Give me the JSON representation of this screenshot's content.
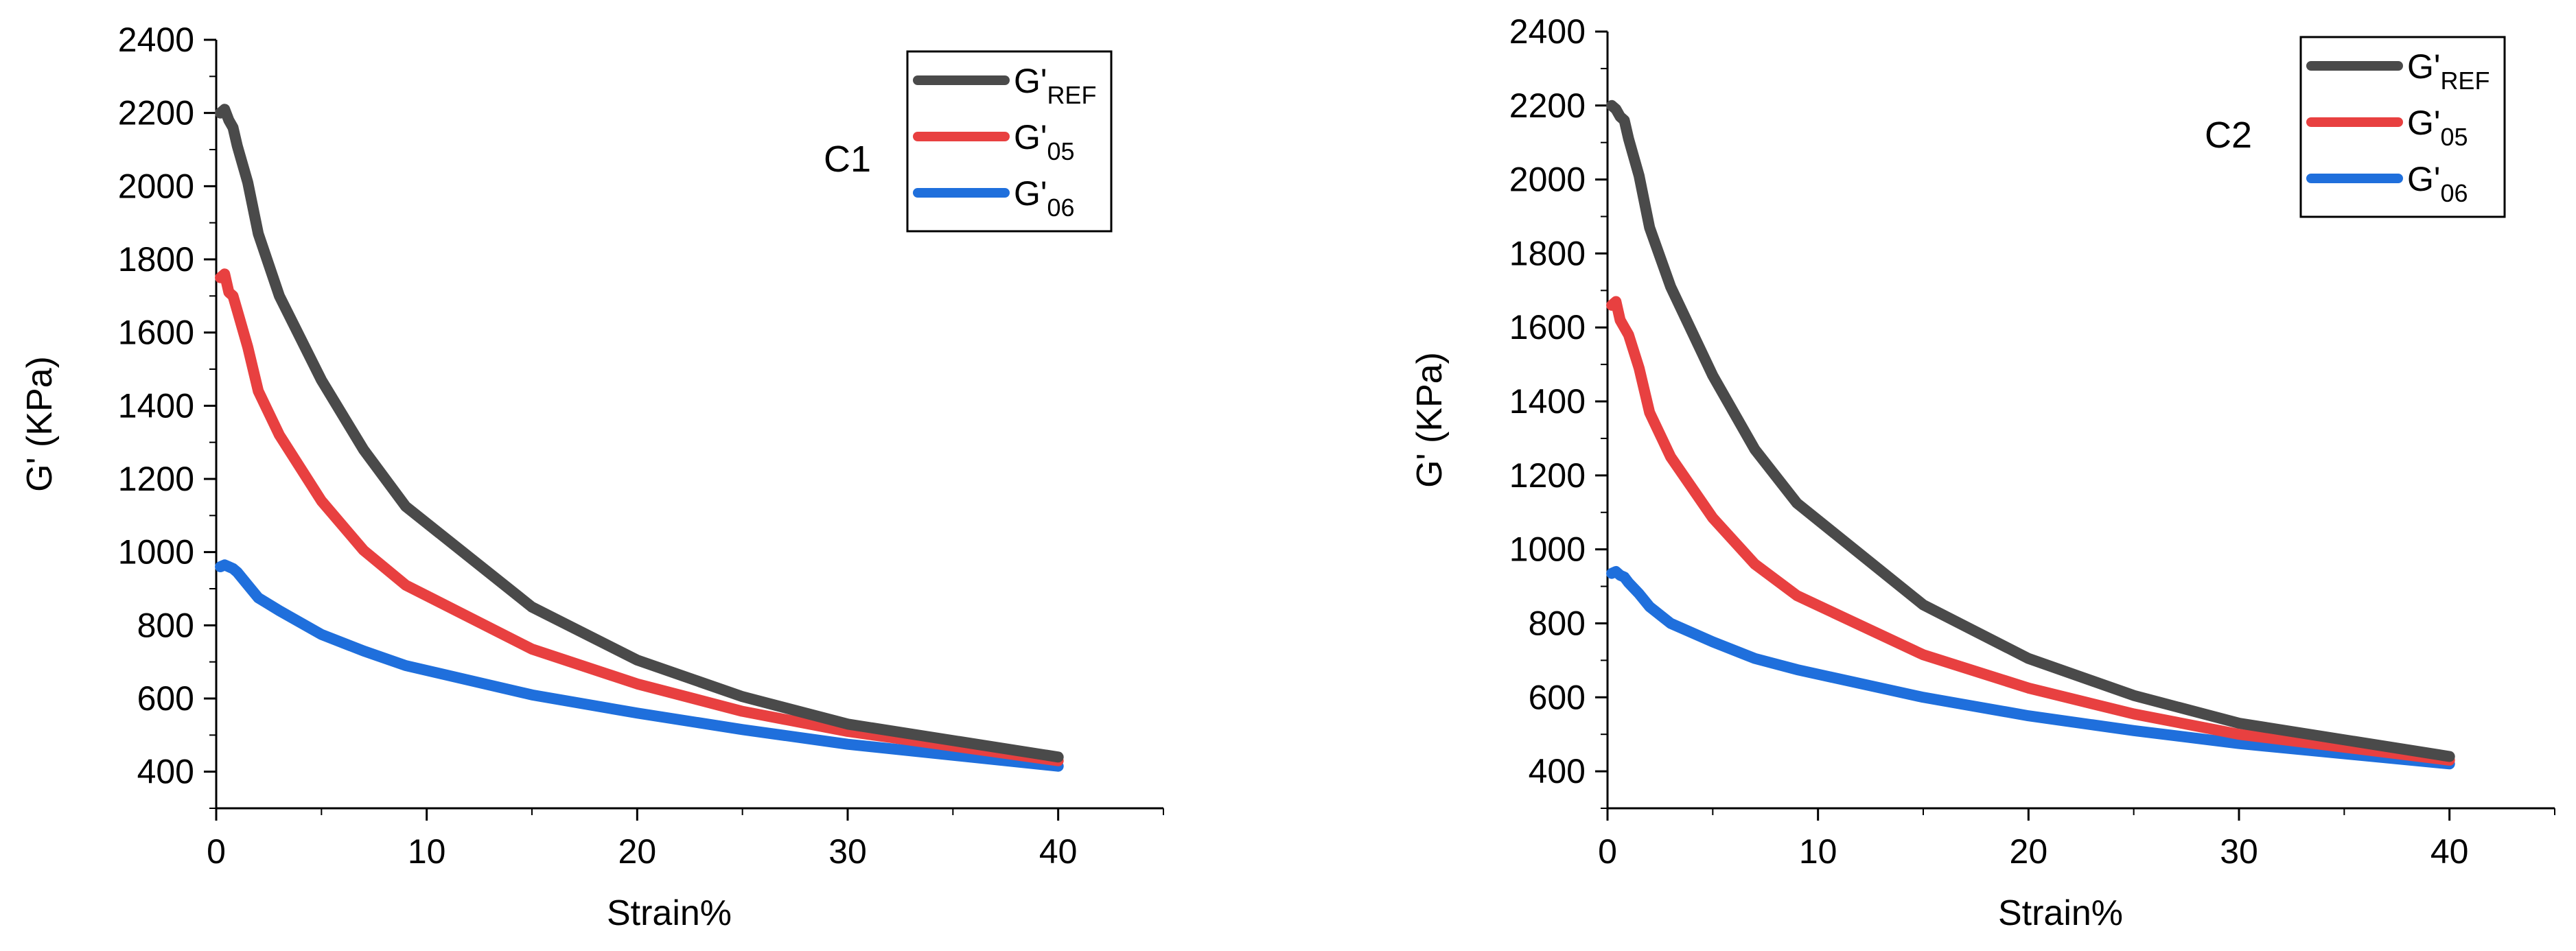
{
  "chart_data": [
    {
      "type": "line",
      "xlabel": "Strain%",
      "ylabel": "G' (KPa)",
      "annotation": "C1",
      "xlim": [
        0,
        45
      ],
      "ylim": [
        300,
        2400
      ],
      "x_ticks": [
        0,
        10,
        20,
        30,
        40
      ],
      "y_ticks": [
        400,
        600,
        800,
        1000,
        1200,
        1400,
        1600,
        1800,
        2000,
        2200,
        2400
      ],
      "x_tick_labels": [
        "0",
        "10",
        "20",
        "30",
        "40"
      ],
      "y_tick_labels": [
        "400",
        "600",
        "800",
        "1000",
        "1200",
        "1400",
        "1600",
        "1800",
        "2000",
        "2200",
        "2400"
      ],
      "legend_position": "top-right",
      "series": [
        {
          "name": "G'REF",
          "base": "G'",
          "sub": "REF",
          "color": "#4a4a4a",
          "x": [
            0.2,
            0.4,
            0.6,
            0.8,
            1,
            1.5,
            2,
            3,
            5,
            7,
            9,
            15,
            20,
            25,
            30,
            40
          ],
          "y": [
            2200,
            2210,
            2180,
            2160,
            2110,
            2010,
            1870,
            1700,
            1470,
            1280,
            1125,
            850,
            705,
            605,
            530,
            440
          ]
        },
        {
          "name": "G'05",
          "base": "G'",
          "sub": "05",
          "color": "#e84040",
          "x": [
            0.2,
            0.4,
            0.6,
            0.8,
            1,
            1.5,
            2,
            3,
            5,
            7,
            9,
            15,
            20,
            25,
            30,
            40
          ],
          "y": [
            1750,
            1760,
            1710,
            1700,
            1660,
            1560,
            1440,
            1320,
            1140,
            1005,
            910,
            735,
            640,
            565,
            510,
            430
          ]
        },
        {
          "name": "G'06",
          "base": "G'",
          "sub": "06",
          "color": "#1f6fdc",
          "x": [
            0.2,
            0.4,
            0.6,
            0.8,
            1,
            1.5,
            2,
            3,
            5,
            7,
            9,
            15,
            20,
            25,
            30,
            40
          ],
          "y": [
            960,
            965,
            960,
            955,
            945,
            910,
            875,
            840,
            775,
            730,
            690,
            610,
            560,
            515,
            475,
            415
          ]
        }
      ]
    },
    {
      "type": "line",
      "xlabel": "Strain%",
      "ylabel": "G' (KPa)",
      "annotation": "C2",
      "xlim": [
        0,
        45
      ],
      "ylim": [
        300,
        2400
      ],
      "x_ticks": [
        0,
        10,
        20,
        30,
        40
      ],
      "y_ticks": [
        400,
        600,
        800,
        1000,
        1200,
        1400,
        1600,
        1800,
        2000,
        2200,
        2400
      ],
      "x_tick_labels": [
        "0",
        "10",
        "20",
        "30",
        "40"
      ],
      "y_tick_labels": [
        "400",
        "600",
        "800",
        "1000",
        "1200",
        "1400",
        "1600",
        "1800",
        "2000",
        "2200",
        "2400"
      ],
      "legend_position": "top-right",
      "series": [
        {
          "name": "G'REF",
          "base": "G'",
          "sub": "REF",
          "color": "#4a4a4a",
          "x": [
            0.2,
            0.4,
            0.6,
            0.8,
            1,
            1.5,
            2,
            3,
            5,
            7,
            9,
            15,
            20,
            25,
            30,
            40
          ],
          "y": [
            2200,
            2190,
            2170,
            2160,
            2110,
            2010,
            1870,
            1710,
            1470,
            1270,
            1125,
            850,
            705,
            605,
            530,
            440
          ]
        },
        {
          "name": "G'05",
          "base": "G'",
          "sub": "05",
          "color": "#e84040",
          "x": [
            0.2,
            0.4,
            0.6,
            0.8,
            1,
            1.5,
            2,
            3,
            5,
            7,
            9,
            15,
            20,
            25,
            30,
            40
          ],
          "y": [
            1660,
            1670,
            1620,
            1600,
            1580,
            1490,
            1370,
            1250,
            1085,
            960,
            875,
            715,
            625,
            555,
            500,
            430
          ]
        },
        {
          "name": "G'06",
          "base": "G'",
          "sub": "06",
          "color": "#1f6fdc",
          "x": [
            0.2,
            0.4,
            0.6,
            0.8,
            1,
            1.5,
            2,
            3,
            5,
            7,
            9,
            15,
            20,
            25,
            30,
            40
          ],
          "y": [
            935,
            940,
            930,
            925,
            910,
            880,
            845,
            800,
            750,
            705,
            675,
            600,
            550,
            510,
            475,
            420
          ]
        }
      ]
    }
  ]
}
